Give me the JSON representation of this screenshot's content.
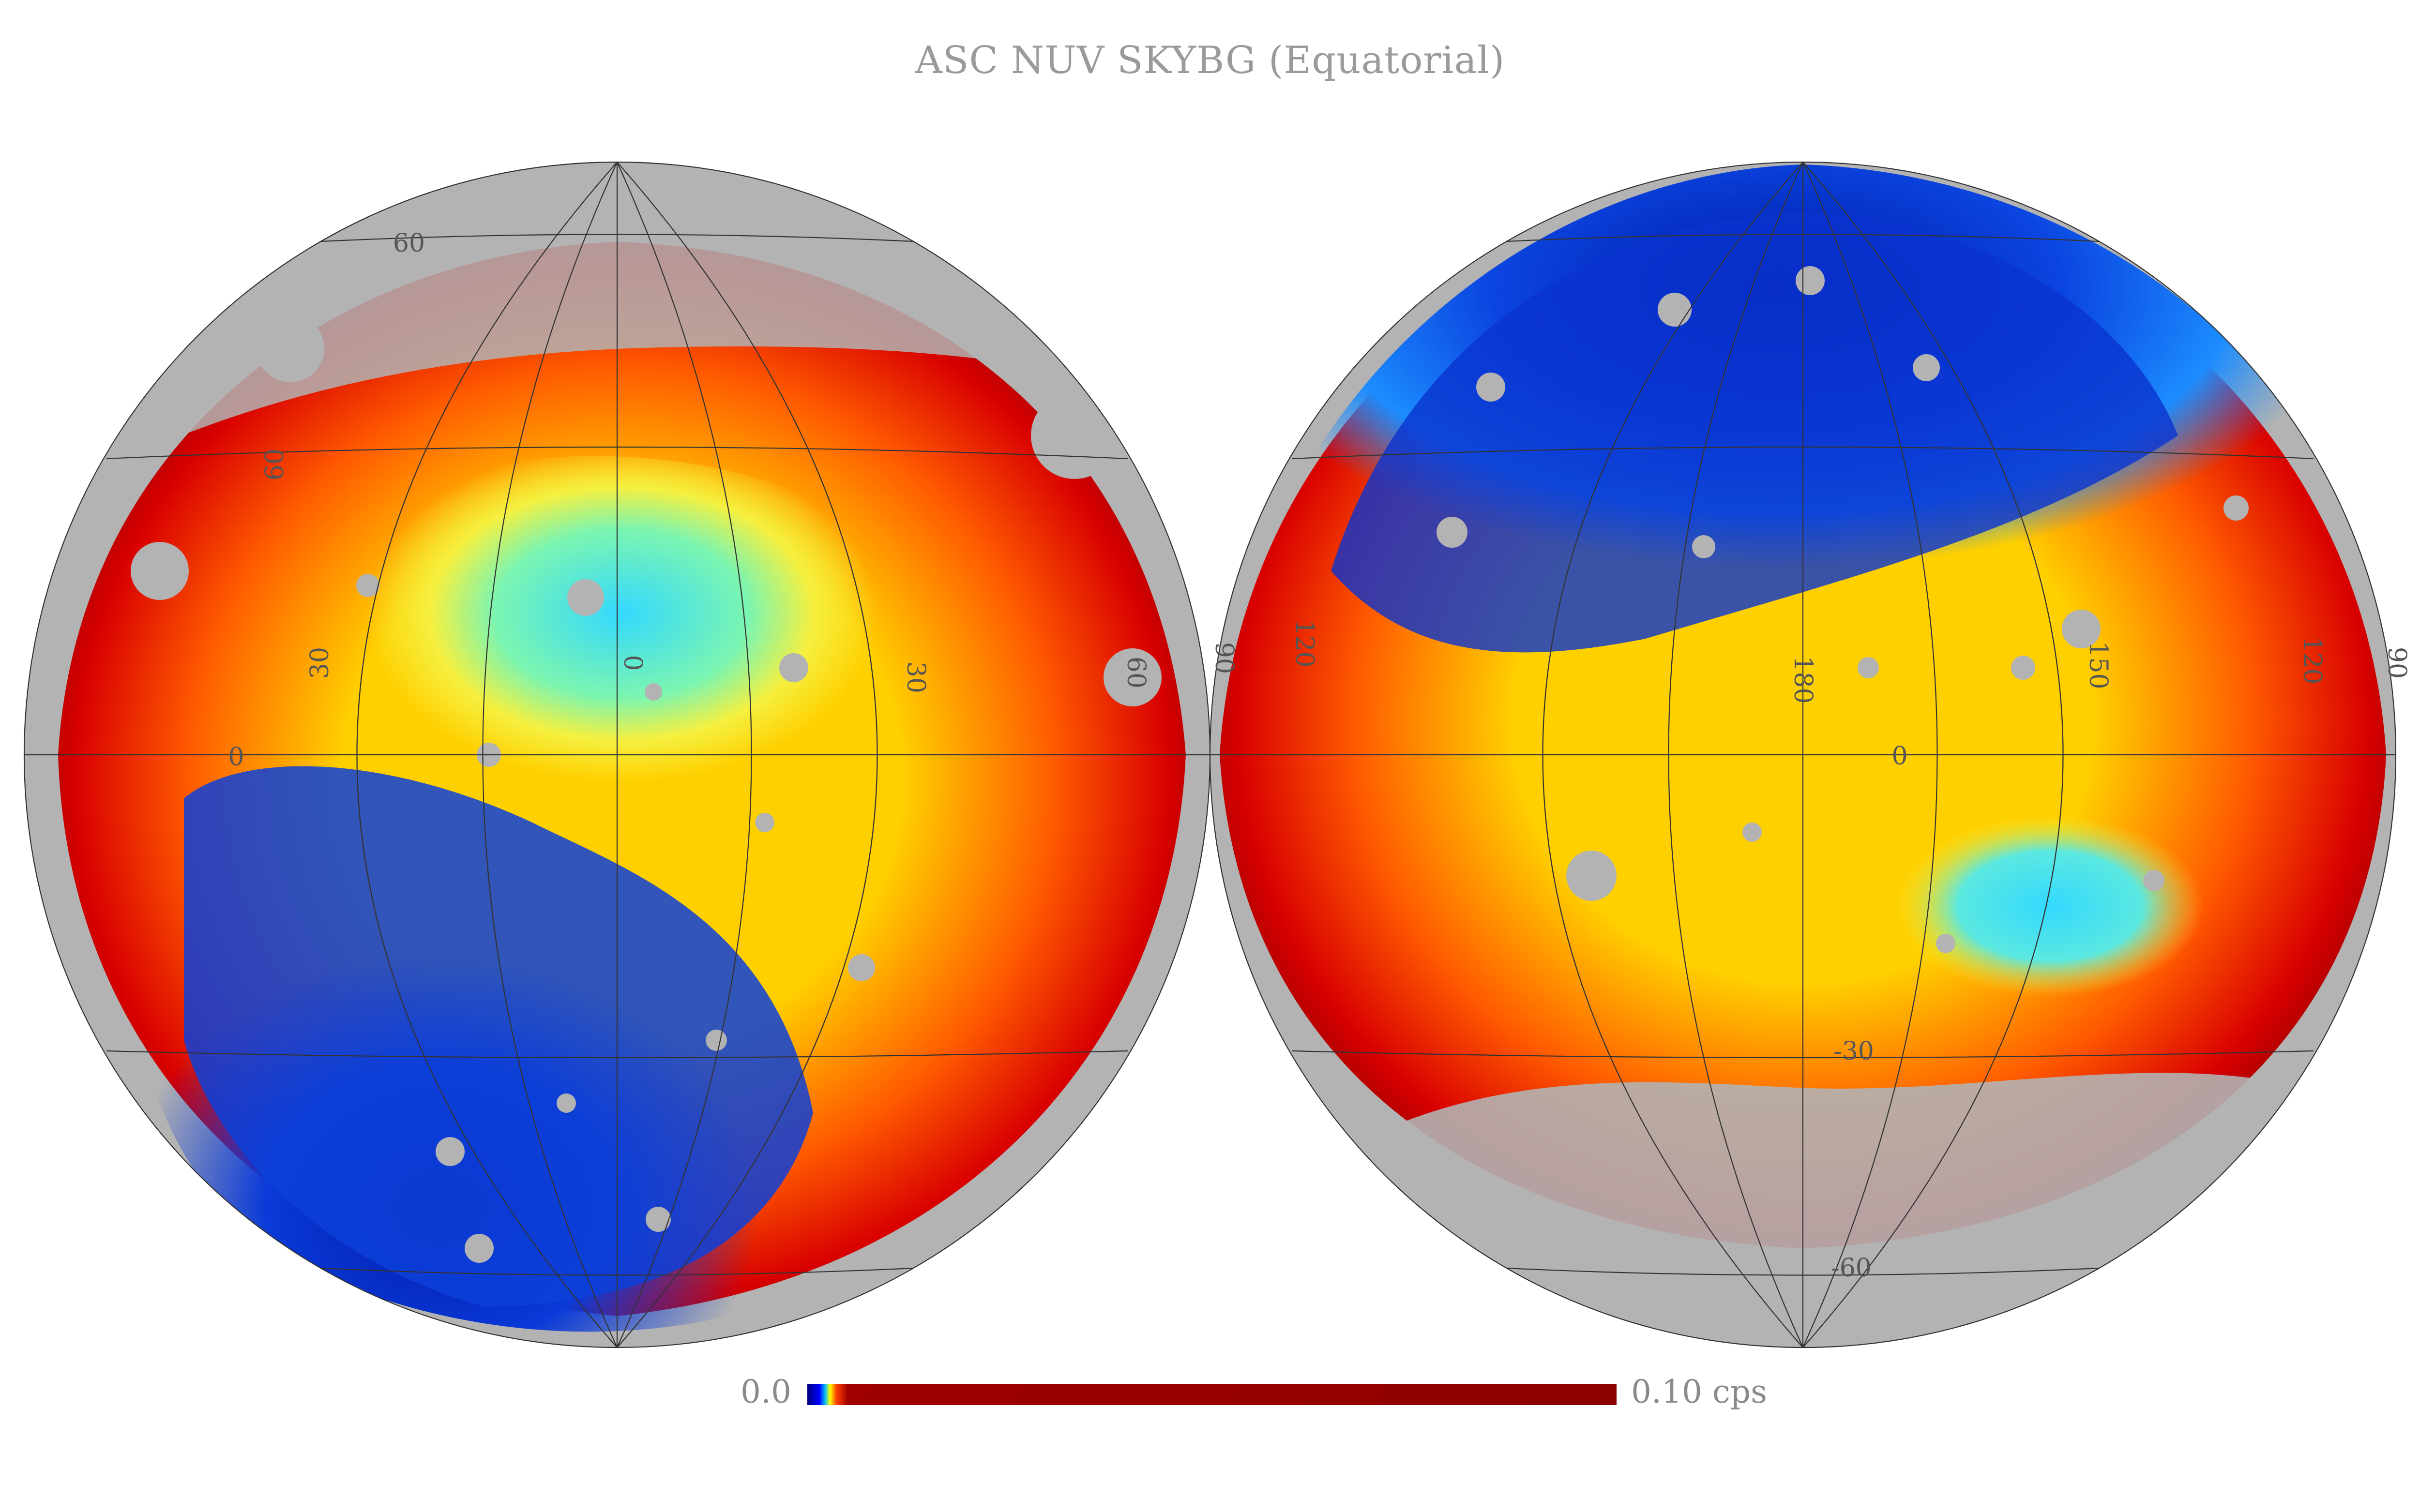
{
  "title": "ASC NUV SKYBG (Equatorial)",
  "projection": "orthographic (two hemispheres)",
  "coordinate_system": "Equatorial",
  "hemispheres": [
    {
      "name": "left",
      "ra_labels": [
        "60",
        "30",
        "0",
        "30",
        "60"
      ],
      "dec_labels": [
        "60",
        "0"
      ]
    },
    {
      "name": "right",
      "ra_labels": [
        "90",
        "120",
        "180",
        "150",
        "120",
        "90"
      ],
      "dec_labels": [
        "0",
        "-30",
        "-60"
      ]
    }
  ],
  "colorbar": {
    "min_label": "0.0",
    "max_label": "0.10 cps",
    "colormap": "jet",
    "no_data_color": "#b3b3b3"
  },
  "colors": {
    "low": "#0a1fb8",
    "mid": "#33e0ff",
    "high": "#ff2a00",
    "max": "#8b0000",
    "grid": "#333333"
  }
}
